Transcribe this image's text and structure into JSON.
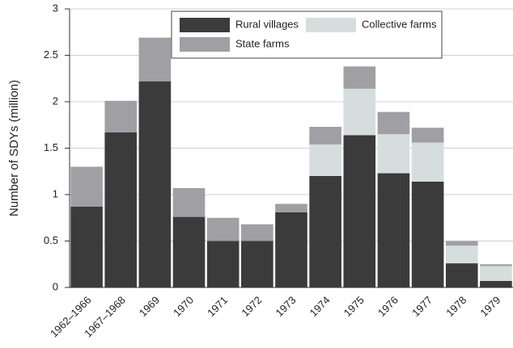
{
  "chart_data": {
    "type": "stacked_bar",
    "y_label": "Number of SDYs (million)",
    "categories": [
      "1962–1966",
      "1967–1968",
      "1969",
      "1970",
      "1971",
      "1972",
      "1973",
      "1974",
      "1975",
      "1976",
      "1977",
      "1978",
      "1979"
    ],
    "series": [
      {
        "name": "Rural villages",
        "color": "#3b3b3b",
        "values": [
          0.87,
          1.67,
          2.22,
          0.76,
          0.5,
          0.5,
          0.81,
          1.2,
          1.64,
          1.23,
          1.14,
          0.26,
          0.07
        ]
      },
      {
        "name": "Collective farms",
        "color": "#d5dedc",
        "values": [
          0,
          0,
          0,
          0,
          0,
          0,
          0,
          0.34,
          0.5,
          0.42,
          0.42,
          0.19,
          0.16
        ]
      },
      {
        "name": "State farms",
        "color": "#a09fa3",
        "values": [
          0.43,
          0.34,
          0.47,
          0.31,
          0.25,
          0.18,
          0.09,
          0.19,
          0.24,
          0.24,
          0.16,
          0.05,
          0.02
        ]
      }
    ],
    "ylim": [
      0,
      3
    ],
    "yticks": [
      0,
      0.5,
      1,
      1.5,
      2,
      2.5,
      3
    ],
    "grid": true
  }
}
